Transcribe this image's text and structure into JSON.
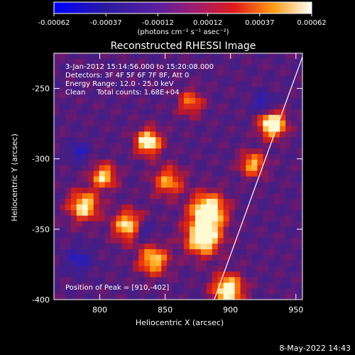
{
  "chart_data": {
    "type": "heatmap",
    "title": "Reconstructed RHESSI Image",
    "xlabel": "Heliocentric X (arcsec)",
    "ylabel": "Heliocentric Y (arcsec)",
    "xlim": [
      765,
      955
    ],
    "ylim": [
      -400,
      -225
    ],
    "x_ticks": [
      800,
      850,
      900,
      950
    ],
    "y_ticks": [
      -250,
      -300,
      -350,
      -400
    ],
    "colorbar": {
      "min": -0.00062,
      "max": 0.00062,
      "ticks": [
        "-0.00062",
        "-0.00037",
        "-0.00012",
        "0.00012",
        "0.00037",
        "0.00062"
      ],
      "tick_values": [
        -0.00062,
        -0.00037,
        -0.00012,
        0.00012,
        0.00037,
        0.00062
      ],
      "unit_label": "(photons cm⁻² s⁻¹ asec⁻²)"
    },
    "annotations": [
      "3-Jan-2012 15:14:56.000 to 15:20:08.000",
      "Detectors: 3F 4F 5F 6F 7F 8F, Att 0",
      "Energy Range: 12.0 - 25.0 keV",
      "Clean     Total counts: 1.68E+04"
    ],
    "peak_label": "Position of Peak = [910,-402]",
    "limb_line": {
      "x": [
        886,
        956
      ],
      "y": [
        -404,
        -225
      ]
    }
  },
  "footer": {
    "timestamp": "8-May-2022 14:43"
  }
}
